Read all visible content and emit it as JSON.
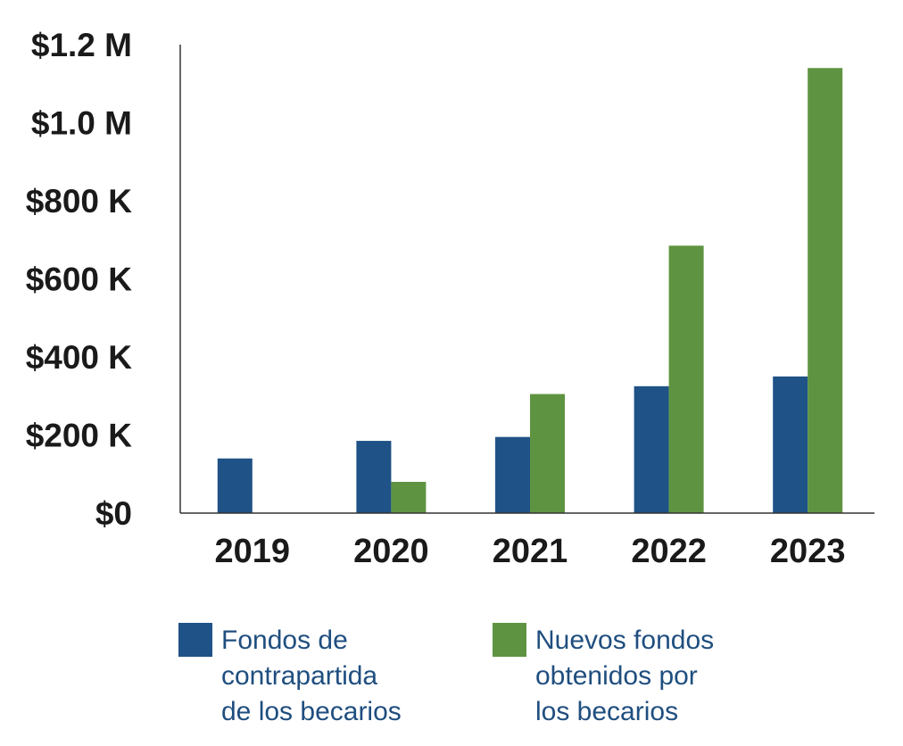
{
  "chart_data": {
    "type": "bar",
    "categories": [
      "2019",
      "2020",
      "2021",
      "2022",
      "2023"
    ],
    "y_ticks": [
      {
        "value": 0,
        "label": "$0"
      },
      {
        "value": 200000,
        "label": "$200 K"
      },
      {
        "value": 400000,
        "label": "$400 K"
      },
      {
        "value": 600000,
        "label": "$600 K"
      },
      {
        "value": 800000,
        "label": "$800 K"
      },
      {
        "value": 1000000,
        "label": "$1.0 M"
      },
      {
        "value": 1200000,
        "label": "$1.2 M"
      }
    ],
    "ylim": [
      0,
      1200000
    ],
    "grid": false,
    "legend_position": "bottom",
    "series": [
      {
        "name": "Fondos de contrapartida de los becarios",
        "name_lines": [
          "Fondos de",
          "contrapartida",
          "de los becarios"
        ],
        "color": "#1f5286",
        "values": [
          140000,
          185000,
          195000,
          325000,
          350000
        ]
      },
      {
        "name": "Nuevos fondos obtenidos por los becarios",
        "name_lines": [
          "Nuevos fondos",
          "obtenidos por",
          "los becarios"
        ],
        "color": "#5e9441",
        "values": [
          0,
          80000,
          305000,
          685000,
          1140000
        ]
      }
    ]
  }
}
